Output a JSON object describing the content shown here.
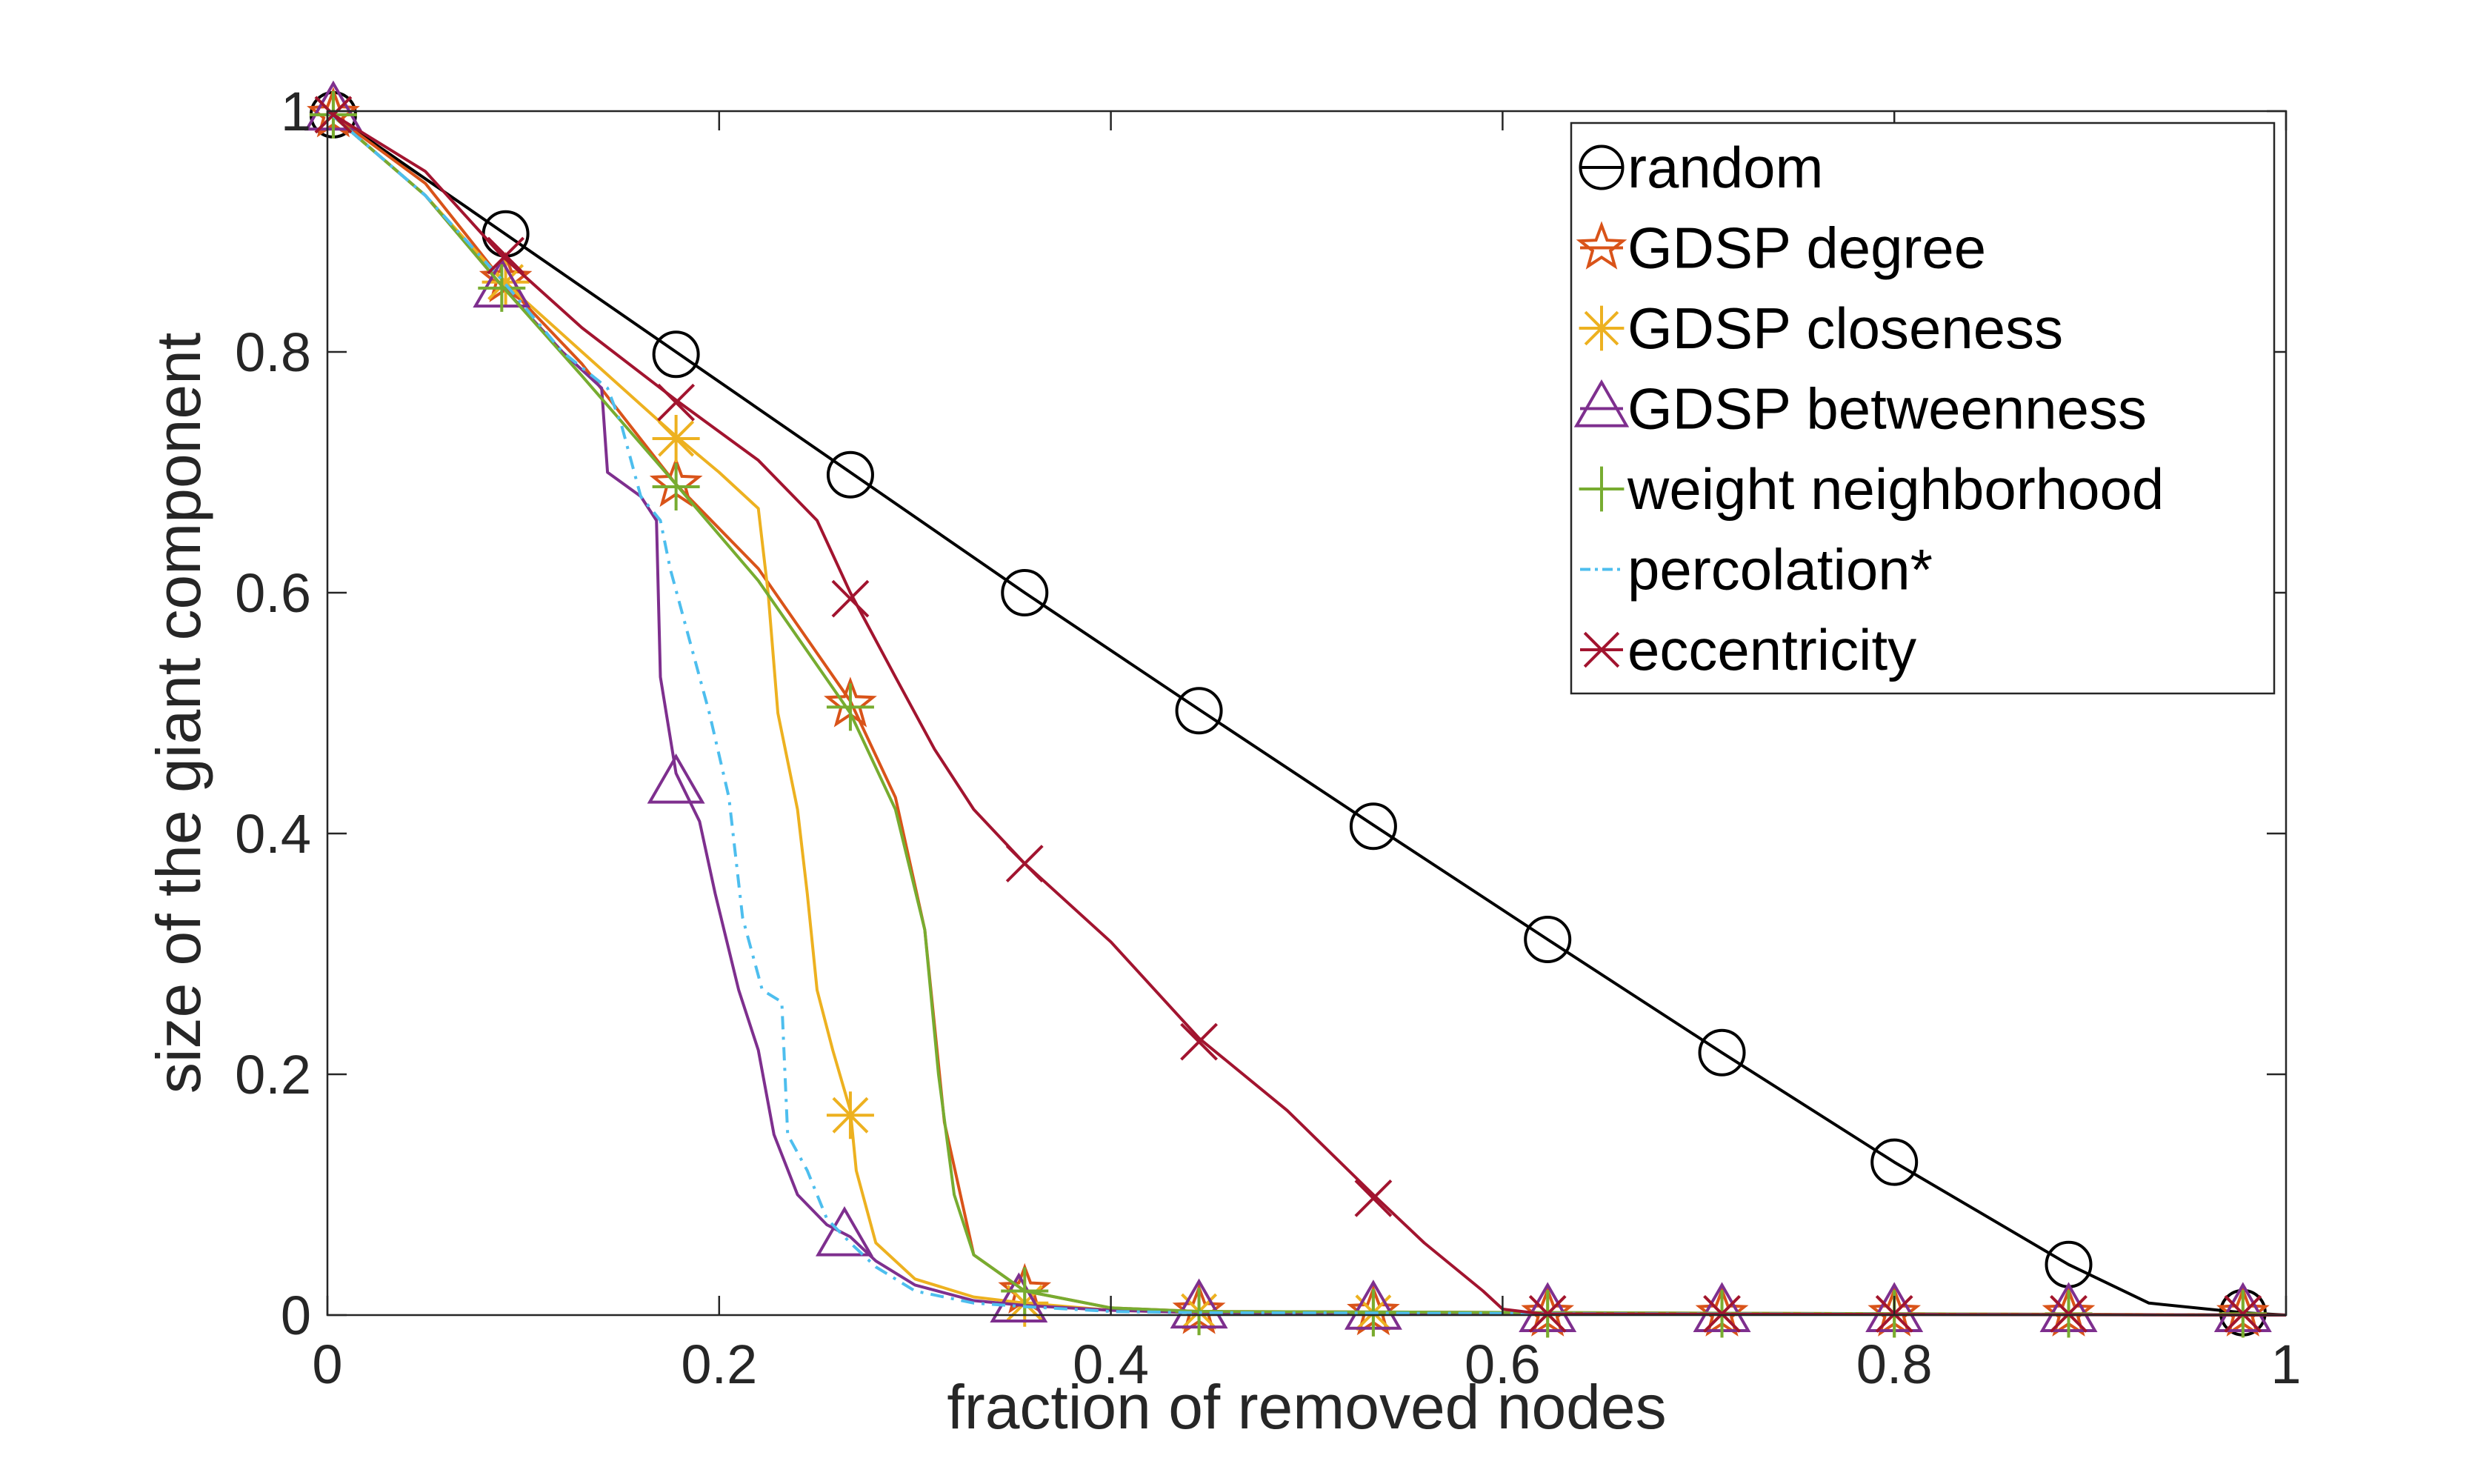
{
  "chart_data": {
    "type": "line",
    "title": "",
    "xlabel": "fraction of removed nodes",
    "ylabel": "size of the giant component",
    "xlim": [
      0,
      1
    ],
    "ylim": [
      0,
      1
    ],
    "xticks": [
      0,
      0.2,
      0.4,
      0.6,
      0.8,
      1
    ],
    "xtick_labels": [
      "0",
      "0.2",
      "0.4",
      "0.6",
      "0.8",
      "1"
    ],
    "yticks": [
      0,
      0.2,
      0.4,
      0.6,
      0.8,
      1
    ],
    "ytick_labels": [
      "0",
      "0.2",
      "0.4",
      "0.6",
      "0.8",
      "1"
    ],
    "grid": false,
    "legend_position": "top-right",
    "series": [
      {
        "name": "random",
        "color": "#000000",
        "marker": "circle",
        "line": "solid",
        "points": [
          [
            0,
            1
          ],
          [
            0.089,
            0.9
          ],
          [
            0.178,
            0.8
          ],
          [
            0.267,
            0.7
          ],
          [
            0.356,
            0.6
          ],
          [
            0.445,
            0.503
          ],
          [
            0.534,
            0.407
          ],
          [
            0.623,
            0.312
          ],
          [
            0.712,
            0.218
          ],
          [
            0.8,
            0.127
          ],
          [
            0.889,
            0.042
          ],
          [
            0.93,
            0.01
          ],
          [
            0.978,
            0.002
          ],
          [
            1,
            0
          ]
        ],
        "markers": [
          [
            0.003,
            0.997
          ],
          [
            0.091,
            0.898
          ],
          [
            0.178,
            0.798
          ],
          [
            0.267,
            0.698
          ],
          [
            0.356,
            0.6
          ],
          [
            0.445,
            0.502
          ],
          [
            0.534,
            0.406
          ],
          [
            0.623,
            0.312
          ],
          [
            0.712,
            0.218
          ],
          [
            0.8,
            0.127
          ],
          [
            0.889,
            0.042
          ],
          [
            0.978,
            0.002
          ]
        ]
      },
      {
        "name": "GDSP degree",
        "color": "#D95319",
        "marker": "star",
        "line": "solid",
        "points": [
          [
            0,
            1
          ],
          [
            0.05,
            0.94
          ],
          [
            0.089,
            0.86
          ],
          [
            0.13,
            0.79
          ],
          [
            0.178,
            0.69
          ],
          [
            0.22,
            0.62
          ],
          [
            0.267,
            0.51
          ],
          [
            0.29,
            0.43
          ],
          [
            0.305,
            0.32
          ],
          [
            0.315,
            0.16
          ],
          [
            0.33,
            0.05
          ],
          [
            0.356,
            0.02
          ],
          [
            0.4,
            0.006
          ],
          [
            0.445,
            0.003
          ],
          [
            1,
            0
          ]
        ],
        "markers": [
          [
            0.003,
            0.997
          ],
          [
            0.091,
            0.86
          ],
          [
            0.178,
            0.69
          ],
          [
            0.267,
            0.507
          ],
          [
            0.356,
            0.02
          ],
          [
            0.445,
            0.003
          ],
          [
            0.534,
            0.002
          ],
          [
            0.623,
            0.001
          ],
          [
            0.712,
            0.001
          ],
          [
            0.8,
            0.001
          ],
          [
            0.889,
            0.001
          ],
          [
            0.978,
            0.001
          ]
        ]
      },
      {
        "name": "GDSP closeness",
        "color": "#EDB120",
        "marker": "asterisk",
        "line": "solid",
        "points": [
          [
            0,
            1
          ],
          [
            0.05,
            0.93
          ],
          [
            0.089,
            0.86
          ],
          [
            0.13,
            0.8
          ],
          [
            0.178,
            0.73
          ],
          [
            0.2,
            0.7
          ],
          [
            0.22,
            0.67
          ],
          [
            0.225,
            0.6
          ],
          [
            0.23,
            0.5
          ],
          [
            0.24,
            0.42
          ],
          [
            0.245,
            0.35
          ],
          [
            0.25,
            0.27
          ],
          [
            0.258,
            0.22
          ],
          [
            0.267,
            0.17
          ],
          [
            0.27,
            0.12
          ],
          [
            0.28,
            0.06
          ],
          [
            0.3,
            0.03
          ],
          [
            0.33,
            0.015
          ],
          [
            0.356,
            0.01
          ],
          [
            0.4,
            0.004
          ],
          [
            0.445,
            0.002
          ],
          [
            1,
            0
          ]
        ],
        "markers": [
          [
            0.003,
            0.997
          ],
          [
            0.091,
            0.858
          ],
          [
            0.178,
            0.728
          ],
          [
            0.267,
            0.166
          ],
          [
            0.356,
            0.01
          ],
          [
            0.445,
            0.003
          ],
          [
            0.534,
            0.002
          ],
          [
            0.623,
            0.001
          ],
          [
            0.712,
            0.001
          ],
          [
            0.8,
            0.001
          ],
          [
            0.889,
            0.001
          ],
          [
            0.978,
            0.001
          ]
        ]
      },
      {
        "name": "GDSP betweenness",
        "color": "#7E2F8E",
        "marker": "triangle",
        "line": "solid",
        "points": [
          [
            0,
            1
          ],
          [
            0.05,
            0.93
          ],
          [
            0.089,
            0.855
          ],
          [
            0.12,
            0.8
          ],
          [
            0.14,
            0.77
          ],
          [
            0.143,
            0.7
          ],
          [
            0.16,
            0.68
          ],
          [
            0.168,
            0.66
          ],
          [
            0.17,
            0.53
          ],
          [
            0.178,
            0.45
          ],
          [
            0.19,
            0.41
          ],
          [
            0.198,
            0.35
          ],
          [
            0.21,
            0.27
          ],
          [
            0.22,
            0.22
          ],
          [
            0.228,
            0.15
          ],
          [
            0.24,
            0.1
          ],
          [
            0.255,
            0.075
          ],
          [
            0.267,
            0.065
          ],
          [
            0.28,
            0.045
          ],
          [
            0.3,
            0.025
          ],
          [
            0.33,
            0.012
          ],
          [
            0.356,
            0.008
          ],
          [
            0.4,
            0.004
          ],
          [
            0.445,
            0.002
          ],
          [
            1,
            0
          ]
        ],
        "markers": [
          [
            0.003,
            1
          ],
          [
            0.089,
            0.853
          ],
          [
            0.178,
            0.441
          ],
          [
            0.264,
            0.065
          ],
          [
            0.353,
            0.01
          ],
          [
            0.445,
            0.005
          ],
          [
            0.534,
            0.004
          ],
          [
            0.623,
            0.002
          ],
          [
            0.712,
            0.002
          ],
          [
            0.8,
            0.002
          ],
          [
            0.889,
            0.002
          ],
          [
            0.978,
            0.002
          ]
        ]
      },
      {
        "name": "weight neighborhood",
        "color": "#77AC30",
        "marker": "plus",
        "line": "solid",
        "points": [
          [
            0,
            1
          ],
          [
            0.05,
            0.93
          ],
          [
            0.089,
            0.855
          ],
          [
            0.13,
            0.78
          ],
          [
            0.178,
            0.69
          ],
          [
            0.22,
            0.61
          ],
          [
            0.267,
            0.5
          ],
          [
            0.29,
            0.42
          ],
          [
            0.305,
            0.32
          ],
          [
            0.312,
            0.2
          ],
          [
            0.32,
            0.1
          ],
          [
            0.33,
            0.05
          ],
          [
            0.356,
            0.02
          ],
          [
            0.4,
            0.006
          ],
          [
            0.445,
            0.003
          ],
          [
            1,
            0
          ]
        ],
        "markers": [
          [
            0.003,
            0.997
          ],
          [
            0.089,
            0.853
          ],
          [
            0.178,
            0.688
          ],
          [
            0.267,
            0.505
          ],
          [
            0.356,
            0.02
          ],
          [
            0.445,
            0.003
          ],
          [
            0.534,
            0.002
          ],
          [
            0.623,
            0.001
          ],
          [
            0.712,
            0.001
          ],
          [
            0.8,
            0.001
          ],
          [
            0.889,
            0.001
          ],
          [
            0.978,
            0.001
          ]
        ]
      },
      {
        "name": "percolation*",
        "color": "#4DBEEE",
        "marker": "none",
        "line": "dashdot",
        "points": [
          [
            0,
            1
          ],
          [
            0.05,
            0.93
          ],
          [
            0.089,
            0.86
          ],
          [
            0.12,
            0.8
          ],
          [
            0.143,
            0.77
          ],
          [
            0.15,
            0.74
          ],
          [
            0.16,
            0.68
          ],
          [
            0.17,
            0.66
          ],
          [
            0.175,
            0.62
          ],
          [
            0.185,
            0.56
          ],
          [
            0.195,
            0.5
          ],
          [
            0.205,
            0.43
          ],
          [
            0.212,
            0.33
          ],
          [
            0.222,
            0.27
          ],
          [
            0.232,
            0.26
          ],
          [
            0.235,
            0.15
          ],
          [
            0.245,
            0.12
          ],
          [
            0.255,
            0.08
          ],
          [
            0.267,
            0.06
          ],
          [
            0.28,
            0.04
          ],
          [
            0.3,
            0.02
          ],
          [
            0.33,
            0.01
          ],
          [
            0.356,
            0.007
          ],
          [
            0.4,
            0.003
          ],
          [
            0.445,
            0.002
          ],
          [
            1,
            0
          ]
        ],
        "markers": []
      },
      {
        "name": "eccentricity",
        "color": "#A2142F",
        "marker": "cross",
        "line": "solid",
        "points": [
          [
            0,
            1
          ],
          [
            0.05,
            0.95
          ],
          [
            0.089,
            0.88
          ],
          [
            0.13,
            0.82
          ],
          [
            0.178,
            0.76
          ],
          [
            0.22,
            0.71
          ],
          [
            0.25,
            0.66
          ],
          [
            0.267,
            0.6
          ],
          [
            0.29,
            0.53
          ],
          [
            0.31,
            0.47
          ],
          [
            0.33,
            0.42
          ],
          [
            0.356,
            0.375
          ],
          [
            0.4,
            0.31
          ],
          [
            0.445,
            0.23
          ],
          [
            0.49,
            0.17
          ],
          [
            0.534,
            0.1
          ],
          [
            0.56,
            0.06
          ],
          [
            0.59,
            0.02
          ],
          [
            0.6,
            0.005
          ],
          [
            0.62,
            0.001
          ],
          [
            1,
            0
          ]
        ],
        "markers": [
          [
            0.003,
            0.997
          ],
          [
            0.091,
            0.88
          ],
          [
            0.178,
            0.758
          ],
          [
            0.267,
            0.595
          ],
          [
            0.356,
            0.375
          ],
          [
            0.445,
            0.227
          ],
          [
            0.534,
            0.097
          ],
          [
            0.623,
            0.001
          ],
          [
            0.712,
            0.001
          ],
          [
            0.8,
            0.001
          ],
          [
            0.889,
            0.001
          ],
          [
            0.978,
            0.001
          ]
        ]
      }
    ]
  }
}
